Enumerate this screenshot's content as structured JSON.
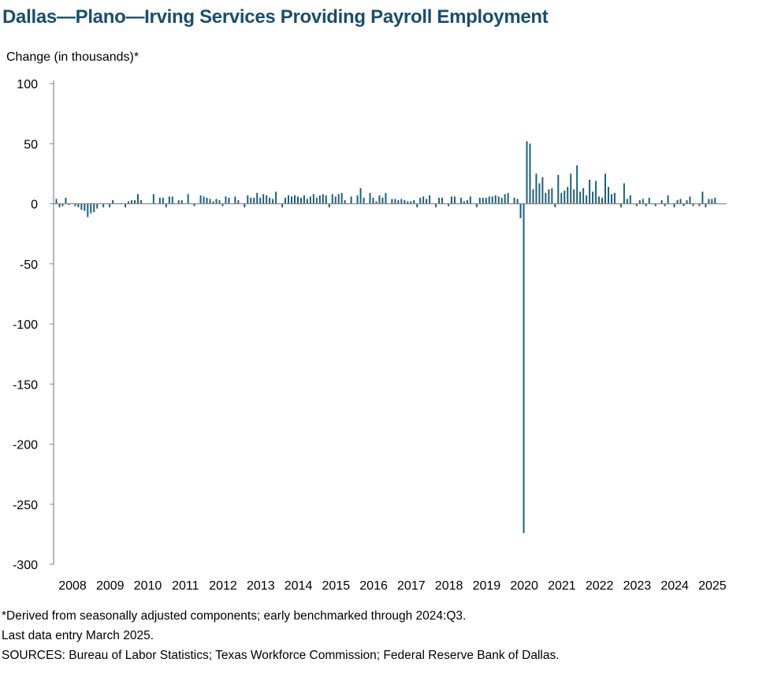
{
  "chart_data": {
    "type": "bar",
    "title": "Dallas—Plano—Irving Services Providing Payroll Employment",
    "ylabel": "Change (in thousands)*",
    "xlabel": "",
    "ylim": [
      -300,
      100
    ],
    "yticks": [
      "100",
      "50",
      "0",
      "-50",
      "-100",
      "-150",
      "-200",
      "-250",
      "-300"
    ],
    "ytick_values": [
      100,
      50,
      0,
      -50,
      -100,
      -150,
      -200,
      -250,
      -300
    ],
    "xticks": [
      "2008",
      "2009",
      "2010",
      "2011",
      "2012",
      "2013",
      "2014",
      "2015",
      "2016",
      "2017",
      "2018",
      "2019",
      "2020",
      "2021",
      "2022",
      "2023",
      "2024",
      "2025"
    ],
    "x_start": "2008-01",
    "x_end": "2025-03",
    "grid": false,
    "bar_color": "#1d5f7c",
    "series": [
      {
        "values": [
          4,
          -3,
          -2,
          5,
          -1,
          0,
          -2,
          -3,
          -5,
          -6,
          -11,
          -8,
          -7,
          -4,
          0,
          -3,
          0,
          -3,
          3,
          0,
          0,
          0,
          -3,
          2,
          3,
          3,
          8,
          3,
          0,
          0,
          0,
          8,
          0,
          5,
          5,
          -3,
          6,
          6,
          0,
          3,
          3,
          0,
          8,
          0,
          -2,
          0,
          7,
          6,
          5,
          4,
          2,
          4,
          3,
          -2,
          6,
          5,
          0,
          6,
          3,
          0,
          -3,
          7,
          5,
          5,
          9,
          5,
          8,
          7,
          5,
          4,
          10,
          0,
          -3,
          5,
          7,
          6,
          7,
          6,
          5,
          7,
          4,
          6,
          8,
          5,
          7,
          8,
          7,
          -3,
          8,
          6,
          8,
          9,
          3,
          0,
          6,
          0,
          7,
          13,
          5,
          0,
          9,
          5,
          2,
          7,
          5,
          9,
          0,
          4,
          4,
          3,
          4,
          3,
          2,
          2,
          3,
          -3,
          5,
          6,
          4,
          7,
          0,
          -3,
          5,
          5,
          0,
          -2,
          6,
          6,
          0,
          5,
          2,
          3,
          6,
          0,
          -3,
          5,
          5,
          5,
          6,
          6,
          7,
          6,
          5,
          8,
          9,
          0,
          5,
          4,
          -12,
          -274,
          52,
          50,
          12,
          25,
          17,
          22,
          9,
          12,
          13,
          -3,
          24,
          9,
          11,
          14,
          25,
          12,
          32,
          10,
          13,
          7,
          20,
          10,
          19,
          6,
          5,
          25,
          14,
          8,
          9,
          0,
          -3,
          17,
          4,
          7,
          0,
          -2,
          3,
          4,
          -2,
          5,
          0,
          -2,
          0,
          3,
          -2,
          7,
          0,
          -3,
          3,
          4,
          -2,
          3,
          6,
          -2,
          0,
          -2,
          10,
          -3,
          4,
          4,
          5
        ]
      }
    ],
    "notes": [
      "*Derived from seasonally adjusted components; early benchmarked through 2024:Q3.",
      "Last data entry March 2025.",
      "SOURCES: Bureau of Labor Statistics; Texas Workforce Commission; Federal Reserve Bank of Dallas."
    ]
  }
}
